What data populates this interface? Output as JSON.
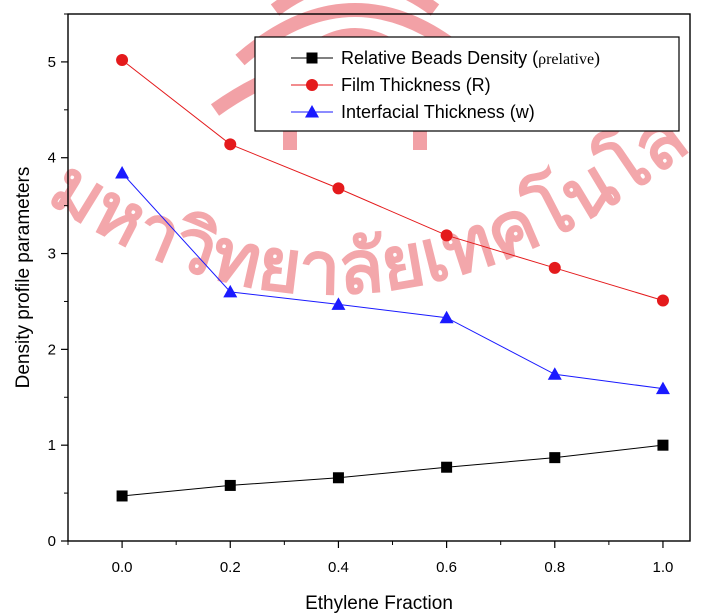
{
  "chart_data": {
    "type": "line",
    "xlabel": "Ethylene Fraction",
    "ylabel": "Density profile parameters",
    "xlim": [
      -0.1,
      1.05
    ],
    "ylim": [
      0,
      5.5
    ],
    "x_ticks": [
      "0.0",
      "0.2",
      "0.4",
      "0.6",
      "0.8",
      "1.0"
    ],
    "y_ticks": [
      "0",
      "1",
      "2",
      "3",
      "4",
      "5"
    ],
    "x": [
      0.0,
      0.2,
      0.4,
      0.6,
      0.8,
      1.0
    ],
    "grid": false,
    "legend_position": "top-right",
    "series": [
      {
        "name": "Relative Beads Density (ρrelative)",
        "name_main": "Relative Beads Density (",
        "name_symbol": "ρrelative",
        "name_close": ")",
        "marker": "square",
        "color": "#000000",
        "values": [
          0.47,
          0.58,
          0.66,
          0.77,
          0.87,
          1.0
        ]
      },
      {
        "name": "Film Thickness (R)",
        "marker": "circle",
        "color": "#e41a1c",
        "values": [
          5.02,
          4.14,
          3.68,
          3.19,
          2.85,
          2.51
        ]
      },
      {
        "name": "Interfacial Thickness (w)",
        "marker": "triangle",
        "color": "#1a1aff",
        "values": [
          3.84,
          2.6,
          2.47,
          2.33,
          1.74,
          1.59
        ]
      }
    ]
  },
  "watermark": {
    "text": "มหาวิทยาลัยเทคโนโลยีสุรนารี",
    "color": "#e23a44"
  }
}
